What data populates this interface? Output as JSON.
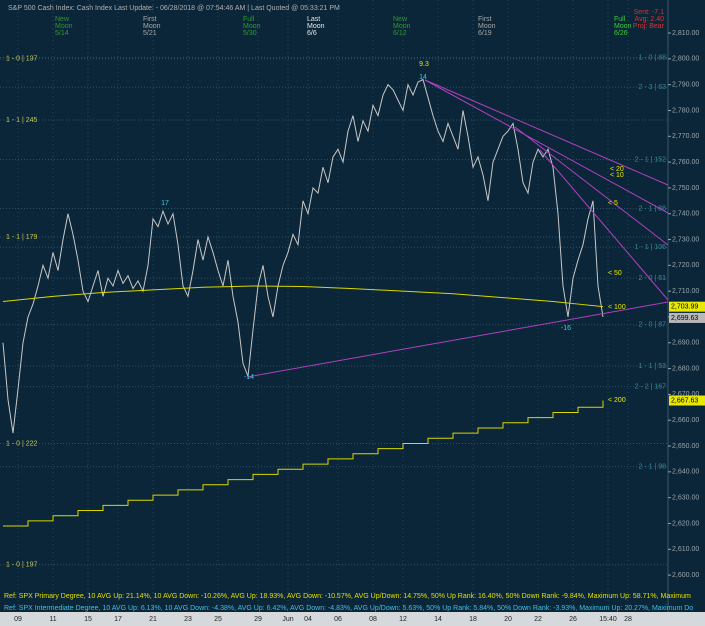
{
  "chart_data": {
    "type": "line",
    "header": "S&P 500 Cash Index: Cash Index   Last Update: - 06/28/2018 @ 07:54:46 AM | Last Quoted @ 05:33:21 PM",
    "moons": [
      {
        "lines": [
          "New",
          "Moon",
          "5/14"
        ],
        "color": "#2e9a2e"
      },
      {
        "lines": [
          "First",
          "Moon",
          "5/21"
        ],
        "color": "#a8a8a8"
      },
      {
        "lines": [
          "Full",
          "Moon",
          "5/30"
        ],
        "color": "#2e9a2e"
      },
      {
        "lines": [
          "Last",
          "Moon",
          "6/6"
        ],
        "color": "#e8e8e8"
      },
      {
        "lines": [
          "New",
          "Moon",
          "6/12"
        ],
        "color": "#2e9a2e"
      },
      {
        "lines": [
          "First",
          "Moon",
          "6/19"
        ],
        "color": "#a8a8a8"
      },
      {
        "lines": [
          "Full",
          "Moon",
          "6/26"
        ],
        "color": "#3ccc3c"
      }
    ],
    "status": [
      {
        "text": "Sent: -7.1",
        "color": "#e03030"
      },
      {
        "text": "Avg: 2.40",
        "color": "#e03030"
      },
      {
        "text": "Proj: Bear",
        "color": "#e03030"
      }
    ],
    "xlim": [
      -0.6,
      133
    ],
    "xticks": [
      {
        "value": 3,
        "label": "09"
      },
      {
        "value": 10,
        "label": "11"
      },
      {
        "value": 17,
        "label": "15"
      },
      {
        "value": 23,
        "label": "17"
      },
      {
        "value": 30,
        "label": "21"
      },
      {
        "value": 37,
        "label": "23"
      },
      {
        "value": 43,
        "label": "25"
      },
      {
        "value": 51,
        "label": "29"
      },
      {
        "value": 57,
        "label": "Jun"
      },
      {
        "value": 61,
        "label": "04"
      },
      {
        "value": 67,
        "label": "06"
      },
      {
        "value": 74,
        "label": "08"
      },
      {
        "value": 80,
        "label": "12"
      },
      {
        "value": 87,
        "label": "14"
      },
      {
        "value": 94,
        "label": "18"
      },
      {
        "value": 101,
        "label": "20"
      },
      {
        "value": 107,
        "label": "22"
      },
      {
        "value": 114,
        "label": "26"
      },
      {
        "value": 121,
        "label": "15:40"
      },
      {
        "value": 125,
        "label": "28"
      }
    ],
    "ylim": [
      2585.7,
      2822.8
    ],
    "yticks": [
      {
        "value": 2600,
        "label": "2,600.00"
      },
      {
        "value": 2610,
        "label": "2,610.00"
      },
      {
        "value": 2620,
        "label": "2,620.00"
      },
      {
        "value": 2630,
        "label": "2,630.00"
      },
      {
        "value": 2640,
        "label": "2,640.00"
      },
      {
        "value": 2650,
        "label": "2,650.00"
      },
      {
        "value": 2660,
        "label": "2,660.00"
      },
      {
        "value": 2670,
        "label": "2,670.00"
      },
      {
        "value": 2680,
        "label": "2,680.00"
      },
      {
        "value": 2690,
        "label": "2,690.00"
      },
      {
        "value": 2700,
        "label": "2,700.00"
      },
      {
        "value": 2710,
        "label": "2,710.00"
      },
      {
        "value": 2720,
        "label": "2,720.00"
      },
      {
        "value": 2730,
        "label": "2,730.00"
      },
      {
        "value": 2740,
        "label": "2,740.00"
      },
      {
        "value": 2750,
        "label": "2,750.00"
      },
      {
        "value": 2760,
        "label": "2,760.00"
      },
      {
        "value": 2770,
        "label": "2,770.00"
      },
      {
        "value": 2780,
        "label": "2,780.00"
      },
      {
        "value": 2790,
        "label": "2,790.00"
      },
      {
        "value": 2800,
        "label": "2,800.00"
      },
      {
        "value": 2810,
        "label": "2,810.00"
      }
    ],
    "series": [
      {
        "color": "#c8c8c8",
        "step": false,
        "x": [
          0,
          1,
          2,
          3,
          4,
          5,
          6,
          7,
          8,
          9,
          10,
          11,
          12,
          13,
          14,
          15,
          16,
          17,
          18,
          19,
          20,
          21,
          22,
          23,
          24,
          25,
          26,
          27,
          28,
          29,
          30,
          31,
          32,
          33,
          34,
          35,
          36,
          37,
          38,
          39,
          40,
          41,
          42,
          43,
          44,
          45,
          46,
          47,
          48,
          49,
          50,
          51,
          52,
          53,
          54,
          55,
          56,
          57,
          58,
          59,
          60,
          61,
          62,
          63,
          64,
          65,
          66,
          67,
          68,
          69,
          70,
          71,
          72,
          73,
          74,
          75,
          76,
          77,
          78,
          79,
          80,
          81,
          82,
          83,
          84,
          85,
          86,
          87,
          88,
          89,
          90,
          91,
          92,
          93,
          94,
          95,
          96,
          97,
          98,
          99,
          100,
          101,
          102,
          103,
          104,
          105,
          106,
          107,
          108,
          109,
          110,
          111,
          112,
          113,
          114,
          115,
          116,
          117,
          118,
          119,
          120
        ],
        "values": [
          2690,
          2668,
          2655,
          2672,
          2690,
          2700,
          2705,
          2712,
          2720,
          2715,
          2725,
          2718,
          2730,
          2740,
          2732,
          2722,
          2710,
          2706,
          2712,
          2718,
          2708,
          2715,
          2712,
          2718,
          2713,
          2716,
          2711,
          2714,
          2710,
          2720,
          2738,
          2735,
          2741,
          2736,
          2740,
          2728,
          2712,
          2708,
          2718,
          2730,
          2722,
          2731,
          2725,
          2718,
          2712,
          2722,
          2708,
          2698,
          2682,
          2677,
          2695,
          2712,
          2720,
          2708,
          2700,
          2712,
          2720,
          2725,
          2732,
          2728,
          2745,
          2740,
          2750,
          2748,
          2758,
          2752,
          2762,
          2765,
          2760,
          2772,
          2778,
          2768,
          2776,
          2772,
          2782,
          2778,
          2786,
          2790,
          2788,
          2784,
          2780,
          2790,
          2786,
          2791,
          2792,
          2785,
          2778,
          2772,
          2768,
          2775,
          2770,
          2765,
          2780,
          2770,
          2758,
          2762,
          2755,
          2745,
          2760,
          2765,
          2770,
          2772,
          2775,
          2765,
          2752,
          2748,
          2760,
          2765,
          2762,
          2765,
          2758,
          2740,
          2712,
          2700,
          2715,
          2722,
          2728,
          2738,
          2745,
          2712,
          2700
        ]
      },
      {
        "color": "#d8d800",
        "step": false,
        "x": [
          0,
          10,
          20,
          30,
          40,
          50,
          60,
          70,
          80,
          90,
          100,
          110,
          115,
          120
        ],
        "values": [
          2706,
          2708,
          2709.5,
          2710.5,
          2711.5,
          2712,
          2711.8,
          2711,
          2710,
          2709,
          2707.5,
          2706,
          2705,
          2703.99
        ]
      },
      {
        "color": "#d8d800",
        "step": true,
        "x": [
          0,
          5,
          10,
          15,
          20,
          25,
          30,
          35,
          40,
          45,
          50,
          55,
          60,
          65,
          70,
          75,
          80,
          85,
          90,
          95,
          100,
          105,
          110,
          115,
          120
        ],
        "values": [
          2619,
          2621,
          2623,
          2625,
          2627,
          2629,
          2631,
          2633,
          2635,
          2637,
          2639,
          2641,
          2643,
          2645,
          2647,
          2649,
          2651,
          2653,
          2655,
          2657,
          2659,
          2661,
          2663,
          2665,
          2667.63
        ]
      }
    ],
    "price_tags": [
      {
        "value": 2703.99,
        "label": "2,703.99",
        "color": "#e8e800"
      },
      {
        "value": 2699.63,
        "label": "2,699.63",
        "color": "#b8b8b8"
      },
      {
        "value": 2667.63,
        "label": "2,667.63",
        "color": "#e8e800"
      }
    ],
    "levels": [
      {
        "value": 2800,
        "label": "1 - 0 | 197",
        "side": "left"
      },
      {
        "value": 2776.3,
        "label": "1 - 1 | 245",
        "side": "left"
      },
      {
        "value": 2731,
        "label": "1 - 1 | 179",
        "side": "left"
      },
      {
        "value": 2651,
        "label": "1 - 0 | 222",
        "side": "left"
      },
      {
        "value": 2604,
        "label": "1 - 0 | 197",
        "side": "left"
      },
      {
        "value": 2800.5,
        "label": "1 - 0 | 88",
        "side": "right"
      },
      {
        "value": 2789,
        "label": "2 - 3 | 63",
        "side": "right"
      },
      {
        "value": 2761,
        "label": "2 - 1 | 152",
        "side": "right"
      },
      {
        "value": 2742,
        "label": "2 - 1 | 88",
        "side": "right"
      },
      {
        "value": 2727,
        "label": "1 - 1 | 106",
        "side": "right"
      },
      {
        "value": 2715,
        "label": "2 - 0 | 61",
        "side": "right"
      },
      {
        "value": 2697,
        "label": "2 - 0 | 87",
        "side": "right"
      },
      {
        "value": 2681,
        "label": "1 - 1 | 53",
        "side": "right"
      },
      {
        "value": 2673,
        "label": "2 - 2 | 167",
        "side": "right"
      },
      {
        "value": 2642,
        "label": "2 - 1 | 98",
        "side": "right"
      }
    ],
    "annotations": [
      {
        "text": "9.3",
        "color": "#e8e800"
      },
      {
        "text": "14",
        "color": "#40c8e0"
      },
      {
        "text": "17",
        "color": "#40c8e0"
      },
      {
        "text": "-14",
        "color": "#40c8e0"
      },
      {
        "text": "-16",
        "color": "#40c8e0"
      },
      {
        "text": "< 20",
        "color": "#e8e800"
      },
      {
        "text": "< 10",
        "color": "#e8e800"
      },
      {
        "text": "< 5",
        "color": "#e8e800"
      },
      {
        "text": "< 50",
        "color": "#e8e800"
      },
      {
        "text": "< 100",
        "color": "#e8e800"
      },
      {
        "text": "< 200",
        "color": "#e8e800"
      }
    ],
    "footer": [
      {
        "text": "Ref: SPX Primary Degree, 10 AVG Up: 21.14%, 10 AVG Down: -10.26%, AVG Up: 18.93%, AVG Down: -10.57%, AVG Up/Down: 14.75%, 50%  Up Rank: 16.40%, 50% Down Rank: -9.84%, Maximum Up: 58.71%, Maximum",
        "color": "#e0e000"
      },
      {
        "text": "Ref: SPX Intermediate Degree, 10 AVG Up: 6.13%, 10 AVG Down: -4.38%, AVG Up: 6.42%, AVG Down: -4.83%, AVG Up/Down: 5.63%, 50%  Up Rank: 5.84%, 50% Down Rank: -3.93%, Maximum Up: 20.27%, Maximum Do",
        "color": "#40c0e0"
      }
    ]
  }
}
